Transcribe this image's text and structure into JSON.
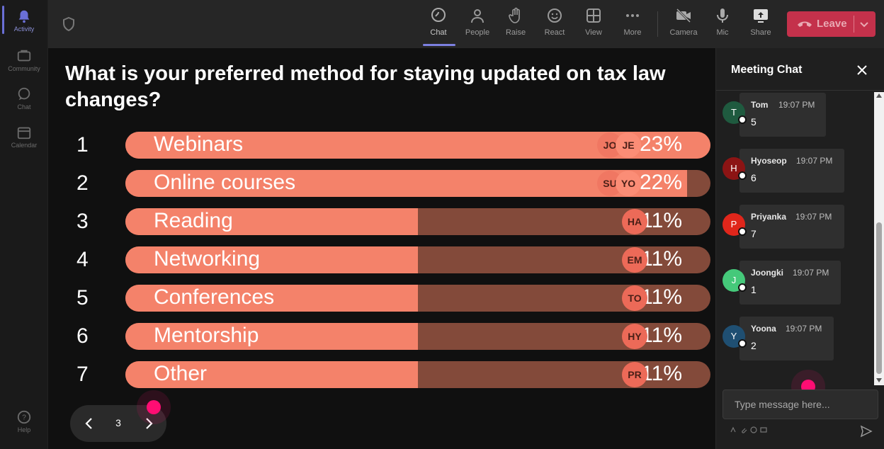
{
  "rail": {
    "items": [
      {
        "label": "Activity",
        "icon": "bell-icon"
      },
      {
        "label": "Community",
        "icon": "community-icon"
      },
      {
        "label": "Chat",
        "icon": "chat-icon"
      },
      {
        "label": "Calendar",
        "icon": "calendar-icon"
      },
      {
        "label": "Help",
        "icon": "help-icon"
      }
    ]
  },
  "toolbar": {
    "chat": "Chat",
    "people": "People",
    "raise": "Raise",
    "react": "React",
    "view": "View",
    "more": "More",
    "camera": "Camera",
    "mic": "Mic",
    "share": "Share",
    "leave": "Leave"
  },
  "poll": {
    "question": "What is your preferred method for staying updated on tax law changes?",
    "options": [
      {
        "num": "1",
        "label": "Webinars",
        "percent": 23,
        "pct_text": "23%",
        "avatars": [
          "JO",
          "JE"
        ]
      },
      {
        "num": "2",
        "label": "Online courses",
        "percent": 22,
        "pct_text": "22%",
        "avatars": [
          "SU",
          "YO"
        ]
      },
      {
        "num": "3",
        "label": "Reading",
        "percent": 11,
        "pct_text": "11%",
        "avatars": [
          "HA"
        ]
      },
      {
        "num": "4",
        "label": "Networking",
        "percent": 11,
        "pct_text": "11%",
        "avatars": [
          "EM"
        ]
      },
      {
        "num": "5",
        "label": "Conferences",
        "percent": 11,
        "pct_text": "11%",
        "avatars": [
          "TO"
        ]
      },
      {
        "num": "6",
        "label": "Mentorship",
        "percent": 11,
        "pct_text": "11%",
        "avatars": [
          "HY"
        ]
      },
      {
        "num": "7",
        "label": "Other",
        "percent": 11,
        "pct_text": "11%",
        "avatars": [
          "PR"
        ]
      }
    ],
    "page": "3"
  },
  "chat": {
    "title": "Meeting Chat",
    "messages": [
      {
        "initial": "T",
        "name": "Tom",
        "time": "19:07 PM",
        "text": "5",
        "color": "#1f5a3f"
      },
      {
        "initial": "H",
        "name": "Hyoseop",
        "time": "19:07 PM",
        "text": "6",
        "color": "#8c1414"
      },
      {
        "initial": "P",
        "name": "Priyanka",
        "time": "19:07 PM",
        "text": "7",
        "color": "#e0261b"
      },
      {
        "initial": "J",
        "name": "Joongki",
        "time": "19:07 PM",
        "text": "1",
        "color": "#45c97a"
      },
      {
        "initial": "Y",
        "name": "Yoona",
        "time": "19:07 PM",
        "text": "2",
        "color": "#1f4f72"
      }
    ],
    "input_placeholder": "Type message here..."
  },
  "colors": {
    "bar_fill": "#f4826a",
    "bar_track": "#834a3a",
    "leave": "#c4314b",
    "accent": "#7c80e0",
    "cursor": "#ff0d73"
  }
}
